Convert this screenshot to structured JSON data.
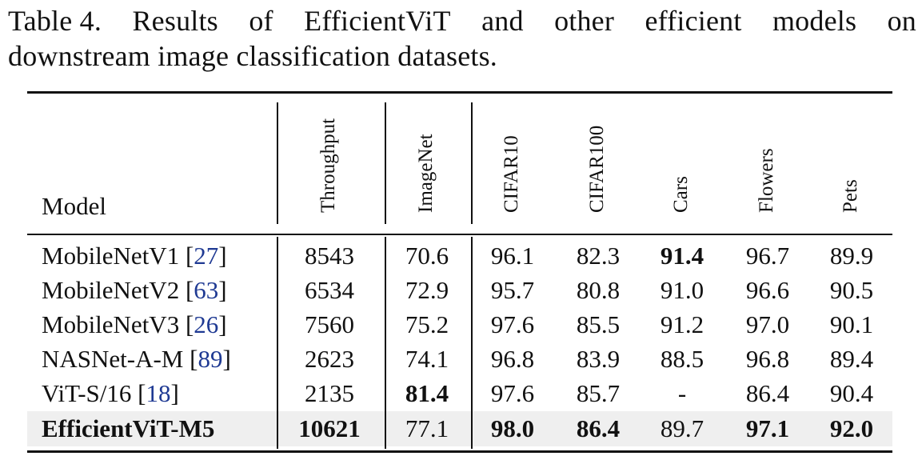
{
  "caption": {
    "label": "Table 4.",
    "line1_words": [
      "Results",
      "of",
      "EfficientViT",
      "and",
      "other",
      "efficient",
      "models",
      "on"
    ],
    "line2": "downstream image classification datasets."
  },
  "table": {
    "model_header": "Model",
    "columns": [
      "Throughput",
      "ImageNet",
      "CIFAR10",
      "CIFAR100",
      "Cars",
      "Flowers",
      "Pets"
    ],
    "rows": [
      {
        "name": "MobileNetV1",
        "cite": "27",
        "values": [
          "8543",
          "70.6",
          "96.1",
          "82.3",
          "91.4",
          "96.7",
          "89.9"
        ],
        "bold": [
          false,
          false,
          false,
          false,
          true,
          false,
          false
        ],
        "highlight": false,
        "name_bold": false
      },
      {
        "name": "MobileNetV2",
        "cite": "63",
        "values": [
          "6534",
          "72.9",
          "95.7",
          "80.8",
          "91.0",
          "96.6",
          "90.5"
        ],
        "bold": [
          false,
          false,
          false,
          false,
          false,
          false,
          false
        ],
        "highlight": false,
        "name_bold": false
      },
      {
        "name": "MobileNetV3",
        "cite": "26",
        "values": [
          "7560",
          "75.2",
          "97.6",
          "85.5",
          "91.2",
          "97.0",
          "90.1"
        ],
        "bold": [
          false,
          false,
          false,
          false,
          false,
          false,
          false
        ],
        "highlight": false,
        "name_bold": false
      },
      {
        "name": "NASNet-A-M",
        "cite": "89",
        "values": [
          "2623",
          "74.1",
          "96.8",
          "83.9",
          "88.5",
          "96.8",
          "89.4"
        ],
        "bold": [
          false,
          false,
          false,
          false,
          false,
          false,
          false
        ],
        "highlight": false,
        "name_bold": false
      },
      {
        "name": "ViT-S/16",
        "cite": "18",
        "values": [
          "2135",
          "81.4",
          "97.6",
          "85.7",
          "-",
          "86.4",
          "90.4"
        ],
        "bold": [
          false,
          true,
          false,
          false,
          false,
          false,
          false
        ],
        "highlight": false,
        "name_bold": false
      },
      {
        "name": "EfficientViT-M5",
        "cite": "",
        "values": [
          "10621",
          "77.1",
          "98.0",
          "86.4",
          "89.7",
          "97.1",
          "92.0"
        ],
        "bold": [
          true,
          false,
          true,
          true,
          false,
          true,
          true
        ],
        "highlight": true,
        "name_bold": true
      }
    ]
  }
}
